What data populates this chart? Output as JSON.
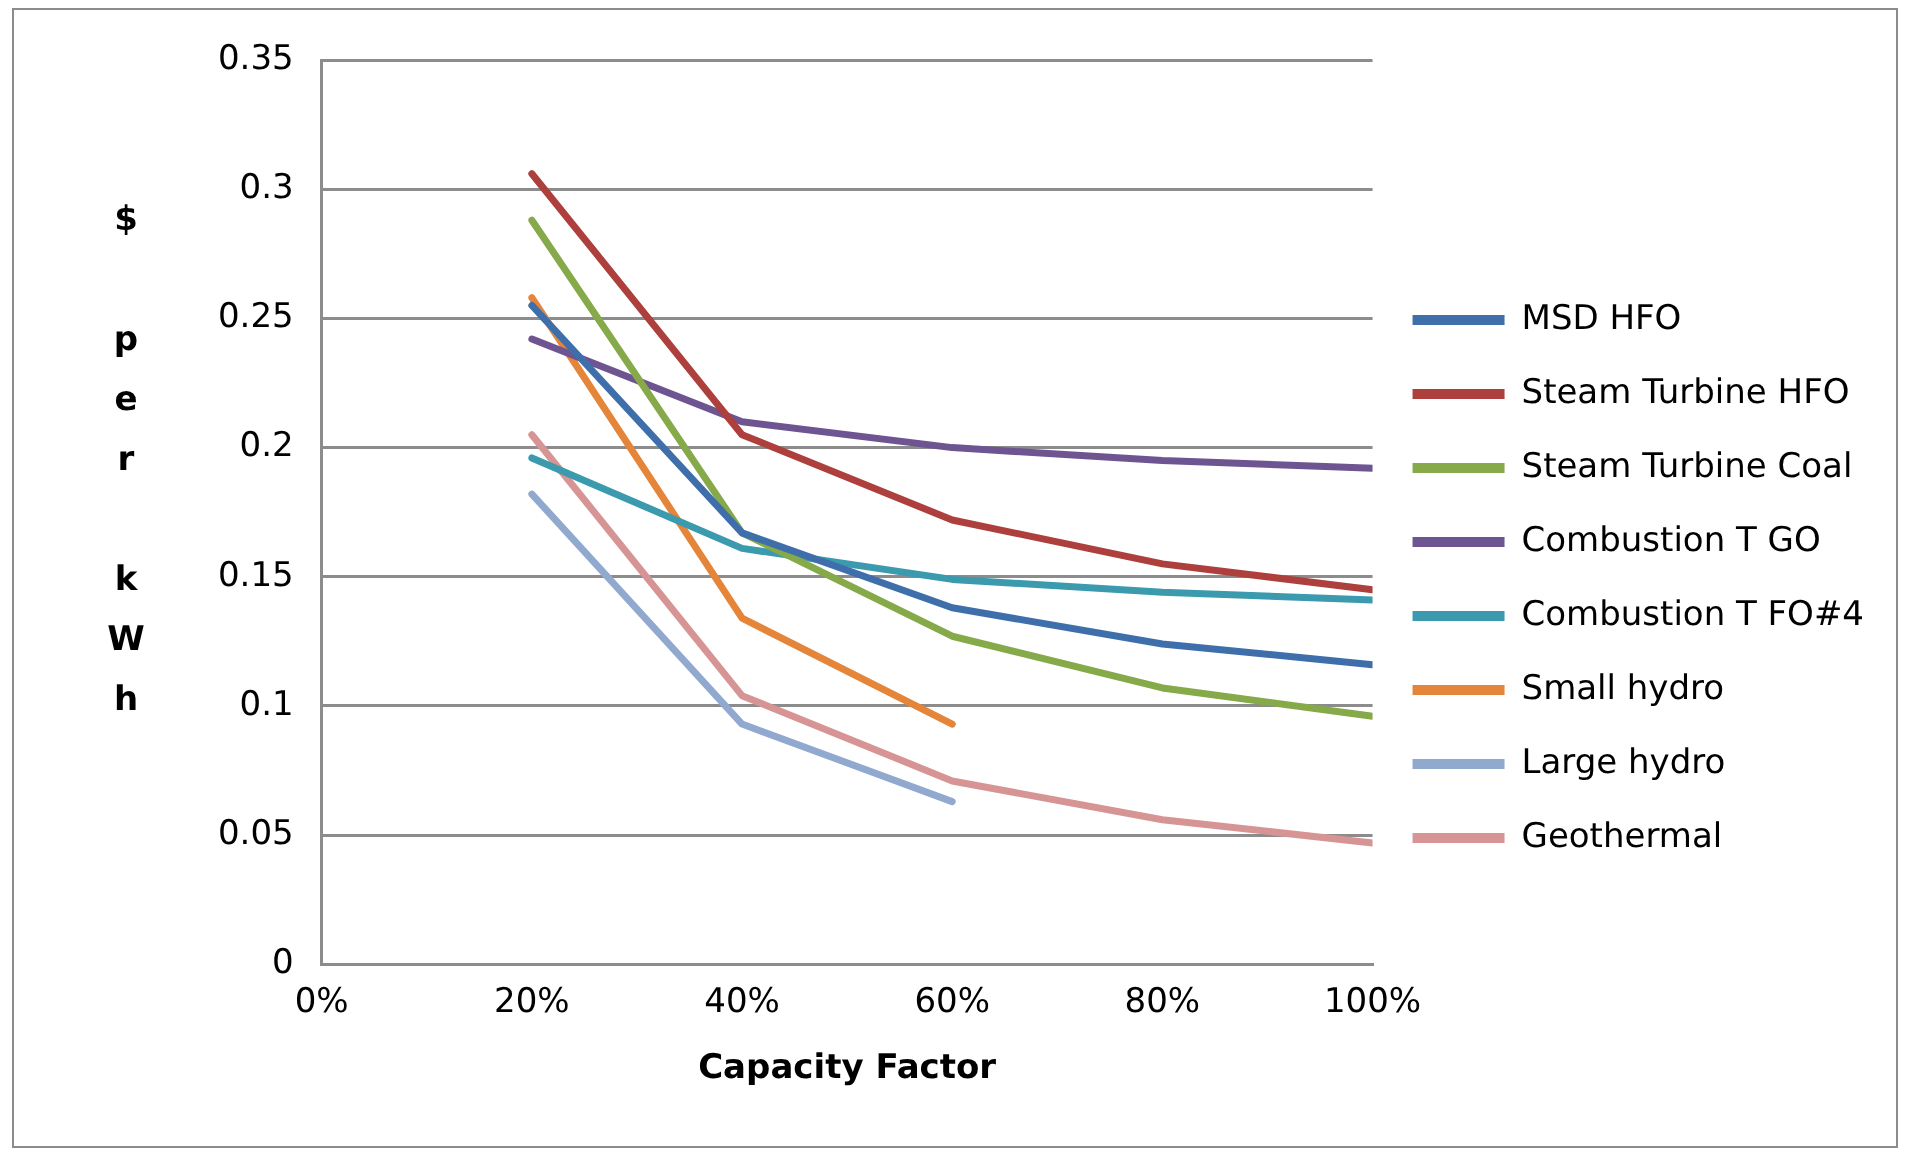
{
  "chart_data": {
    "type": "line",
    "xlabel": "Capacity Factor",
    "ylabel": "$ per kWh",
    "x": [
      20,
      40,
      60,
      80,
      100
    ],
    "xlim": [
      0,
      100
    ],
    "xticks": [
      {
        "value": 0,
        "label": "0%"
      },
      {
        "value": 20,
        "label": "20%"
      },
      {
        "value": 40,
        "label": "40%"
      },
      {
        "value": 60,
        "label": "60%"
      },
      {
        "value": 80,
        "label": "80%"
      },
      {
        "value": 100,
        "label": "100%"
      }
    ],
    "ylim": [
      0,
      0.35
    ],
    "yticks": [
      0,
      0.05,
      0.1,
      0.15,
      0.2,
      0.25,
      0.3,
      0.35
    ],
    "grid": "y",
    "legend": "right",
    "marker": "none",
    "line_style": "solid",
    "series": [
      {
        "name": "MSD HFO",
        "color": "#3f6fab",
        "values": [
          0.255,
          0.167,
          0.138,
          0.124,
          0.116
        ]
      },
      {
        "name": "Steam Turbine HFO",
        "color": "#ad3f3c",
        "values": [
          0.306,
          0.205,
          0.172,
          0.155,
          0.145
        ]
      },
      {
        "name": "Steam Turbine Coal",
        "color": "#86a94a",
        "values": [
          0.288,
          0.167,
          0.127,
          0.107,
          0.096
        ]
      },
      {
        "name": "Combustion T GO",
        "color": "#6e5491",
        "values": [
          0.242,
          0.21,
          0.2,
          0.195,
          0.192
        ]
      },
      {
        "name": "Combustion T FO#4",
        "color": "#3b9aad",
        "values": [
          0.196,
          0.161,
          0.149,
          0.144,
          0.141
        ]
      },
      {
        "name": "Small hydro",
        "color": "#e5853a",
        "values": [
          0.258,
          0.134,
          0.093,
          null,
          null
        ]
      },
      {
        "name": "Large hydro",
        "color": "#91a8cf",
        "values": [
          0.182,
          0.093,
          0.063,
          null,
          null
        ]
      },
      {
        "name": "Geothermal",
        "color": "#d69594",
        "values": [
          0.205,
          0.104,
          0.071,
          0.056,
          0.047
        ]
      }
    ]
  }
}
